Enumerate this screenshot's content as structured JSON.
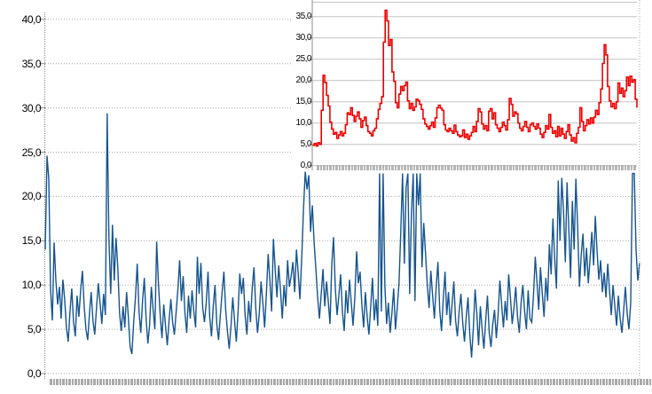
{
  "chart_data": [
    {
      "id": "main",
      "type": "line",
      "title": "",
      "xlabel": "",
      "ylabel": "",
      "ylim": [
        0,
        40
      ],
      "ytick_step": 5,
      "yticks": [
        "0,0",
        "5,0",
        "10,0",
        "15,0",
        "20,0",
        "25,0",
        "30,0",
        "35,0",
        "40,0"
      ],
      "grid": "horizontal-dotted",
      "legend": "none",
      "x_axis_render": "dense unreadable tick-label strip",
      "series": [
        {
          "name": "blue-series",
          "color": "#15548F",
          "values": [
            14.0,
            24.6,
            22.0,
            9.5,
            6.0,
            14.8,
            10.5,
            7.8,
            9.8,
            6.2,
            10.6,
            8.4,
            5.2,
            3.6,
            7.0,
            9.6,
            5.8,
            4.2,
            8.8,
            6.4,
            9.4,
            11.6,
            7.6,
            5.0,
            3.8,
            6.8,
            9.2,
            6.0,
            4.4,
            7.4,
            10.2,
            8.0,
            5.6,
            9.0,
            6.6,
            29.4,
            15.2,
            9.0,
            16.8,
            10.5,
            15.3,
            12.0,
            6.8,
            4.8,
            7.6,
            5.2,
            9.2,
            6.4,
            3.0,
            2.2,
            5.8,
            8.6,
            12.4,
            7.0,
            4.6,
            8.2,
            10.8,
            6.2,
            3.4,
            5.4,
            9.8,
            7.2,
            5.0,
            14.9,
            10.2,
            6.6,
            4.0,
            7.8,
            5.4,
            3.2,
            6.0,
            8.4,
            5.8,
            4.4,
            7.0,
            9.6,
            12.8,
            8.2,
            11.0,
            6.8,
            4.6,
            8.8,
            6.2,
            9.4,
            7.0,
            5.2,
            13.2,
            9.0,
            12.5,
            7.4,
            5.8,
            8.0,
            11.5,
            6.4,
            4.2,
            7.6,
            10.0,
            5.6,
            3.8,
            6.6,
            9.2,
            11.5,
            7.2,
            4.8,
            2.8,
            5.4,
            8.6,
            6.0,
            3.6,
            7.0,
            11.3,
            9.0,
            10.8,
            6.6,
            4.4,
            8.2,
            5.8,
            9.6,
            12.0,
            7.4,
            4.6,
            6.8,
            10.4,
            8.0,
            5.2,
            9.0,
            13.5,
            10.6,
            7.0,
            15.2,
            11.8,
            8.6,
            12.2,
            9.4,
            6.2,
            10.0,
            7.6,
            12.8,
            9.8,
            11.0,
            12.6,
            9.2,
            14.0,
            11.4,
            8.4,
            13.0,
            18.5,
            22.8,
            20.8,
            22.4,
            16.0,
            19.0,
            14.8,
            11.8,
            8.6,
            6.2,
            9.0,
            11.8,
            7.6,
            10.4,
            8.2,
            5.6,
            12.2,
            15.4,
            9.6,
            6.6,
            8.8,
            11.2,
            7.0,
            4.8,
            9.4,
            6.8,
            10.6,
            8.0,
            5.4,
            8.6,
            13.8,
            10.2,
            11.5,
            7.8,
            5.2,
            9.2,
            6.4,
            4.4,
            7.6,
            10.8,
            6.0,
            8.4,
            5.4,
            22.6,
            7.0,
            22.6,
            9.8,
            5.6,
            8.0,
            4.6,
            6.8,
            9.6,
            5.0,
            7.4,
            10.2,
            16.0,
            22.6,
            12.4,
            21.0,
            22.6,
            9.0,
            18.0,
            22.6,
            8.2,
            22.6,
            19.0,
            22.6,
            12.0,
            17.0,
            13.6,
            10.0,
            7.4,
            11.6,
            8.8,
            6.2,
            9.8,
            12.6,
            7.2,
            4.8,
            8.4,
            11.5,
            6.6,
            9.2,
            5.4,
            7.8,
            10.4,
            6.0,
            4.2,
            7.0,
            9.0,
            5.8,
            3.6,
            6.4,
            8.6,
            4.4,
            1.8,
            5.2,
            9.5,
            6.8,
            3.2,
            7.6,
            5.0,
            2.8,
            6.0,
            8.8,
            4.6,
            3.0,
            5.6,
            7.2,
            4.0,
            6.6,
            10.5,
            7.8,
            5.2,
            8.2,
            6.0,
            11.2,
            8.6,
            5.6,
            7.4,
            9.8,
            6.4,
            4.6,
            8.0,
            10.0,
            7.0,
            5.0,
            9.4,
            6.2,
            5.8,
            8.8,
            13.2,
            10.4,
            7.2,
            12.0,
            9.0,
            6.4,
            10.8,
            8.2,
            14.6,
            11.2,
            17.5,
            13.0,
            9.6,
            21.8,
            15.0,
            22.1,
            18.2,
            12.6,
            21.6,
            16.4,
            10.8,
            19.5,
            14.0,
            22.0,
            16.5,
            9.8,
            13.4,
            15.8,
            11.0,
            14.2,
            10.2,
            13.0,
            16.0,
            12.2,
            17.8,
            13.8,
            10.6,
            12.8,
            9.2,
            11.4,
            8.6,
            12.4,
            9.4,
            6.6,
            10.0,
            7.6,
            5.4,
            8.8,
            6.2,
            4.6,
            7.2,
            9.8,
            6.8,
            5.0,
            8.0,
            22.6,
            22.6,
            14.0,
            10.5,
            12.5
          ]
        }
      ]
    },
    {
      "id": "inset",
      "type": "line",
      "title": "",
      "xlabel": "",
      "ylabel": "",
      "ylim": [
        0,
        37
      ],
      "ytick_step": 5,
      "yticks": [
        "0,0",
        "5,0",
        "10,0",
        "15,0",
        "20,0",
        "25,0",
        "30,0",
        "35,0"
      ],
      "grid": "horizontal-solid",
      "legend": "none",
      "x_axis_render": "dense unreadable tick-label strip",
      "series": [
        {
          "name": "red-series",
          "color": "#EE0000",
          "values": [
            4.8,
            5.2,
            4.6,
            5.4,
            5.0,
            13.0,
            21.2,
            19.5,
            16.5,
            14.0,
            10.2,
            8.6,
            7.4,
            7.8,
            6.4,
            7.2,
            8.0,
            7.0,
            7.6,
            9.6,
            12.4,
            12.0,
            13.6,
            11.8,
            10.4,
            11.6,
            12.6,
            11.0,
            9.0,
            10.6,
            11.4,
            9.4,
            8.0,
            7.6,
            7.0,
            8.2,
            8.8,
            11.0,
            13.2,
            14.6,
            16.2,
            29.0,
            36.5,
            34.0,
            28.2,
            29.6,
            22.0,
            19.8,
            14.8,
            13.6,
            16.8,
            18.6,
            17.6,
            18.8,
            19.6,
            15.2,
            13.4,
            14.6,
            13.0,
            13.8,
            15.6,
            15.2,
            14.4,
            13.2,
            11.0,
            9.8,
            9.2,
            8.6,
            9.4,
            10.2,
            9.0,
            11.2,
            13.6,
            14.2,
            13.5,
            13.0,
            9.6,
            8.4,
            8.0,
            8.8,
            8.2,
            7.6,
            9.5,
            8.0,
            7.2,
            6.8,
            7.0,
            8.4,
            6.6,
            7.4,
            6.2,
            7.0,
            7.8,
            9.2,
            8.0,
            10.4,
            13.4,
            12.6,
            9.8,
            8.6,
            9.4,
            8.2,
            12.8,
            13.4,
            11.0,
            12.4,
            9.6,
            8.8,
            8.0,
            9.0,
            10.2,
            9.4,
            8.4,
            10.8,
            15.8,
            14.4,
            11.6,
            12.6,
            12.2,
            10.0,
            8.8,
            8.2,
            9.2,
            10.4,
            9.0,
            8.0,
            9.6,
            10.0,
            9.2,
            8.6,
            9.8,
            8.8,
            7.4,
            6.6,
            7.8,
            9.4,
            8.6,
            12.0,
            9.0,
            7.6,
            8.2,
            6.8,
            9.2,
            7.0,
            8.8,
            7.4,
            6.4,
            8.0,
            9.6,
            7.2,
            5.8,
            6.6,
            5.4,
            7.6,
            9.0,
            13.6,
            10.4,
            8.2,
            9.4,
            10.8,
            9.8,
            11.2,
            10.0,
            11.4,
            13.0,
            12.0,
            14.8,
            18.0,
            24.0,
            28.4,
            26.0,
            18.6,
            15.2,
            13.8,
            14.6,
            13.4,
            15.0,
            19.4,
            17.0,
            18.2,
            16.2,
            17.6,
            20.8,
            18.8,
            21.0,
            19.6,
            20.2,
            15.6,
            13.6
          ]
        }
      ]
    }
  ],
  "colors": {
    "background": "#FFFFFF",
    "main_series": "#15548F",
    "inset_series": "#EE0000",
    "gridline_main": "#A8A8A8",
    "gridline_inset": "#C4C4C4",
    "axis": "#8C8C8C",
    "tick_strip": "#A9A9A9",
    "label_text": "#000000"
  }
}
